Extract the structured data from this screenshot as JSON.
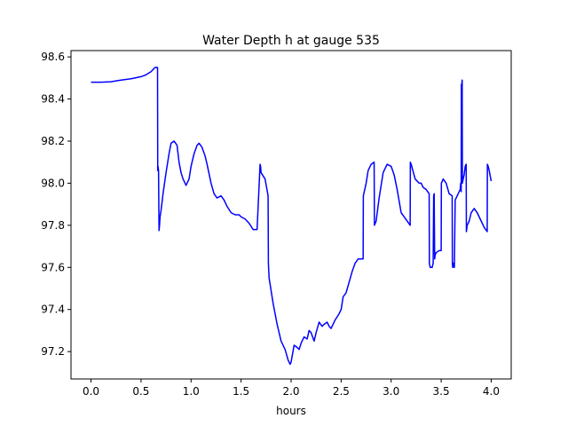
{
  "chart_data": {
    "type": "line",
    "title": "Water Depth h at gauge 535",
    "xlabel": "hours",
    "ylabel": "",
    "xlim": [
      -0.2,
      4.2
    ],
    "ylim": [
      97.07,
      98.63
    ],
    "x_ticks": [
      0.0,
      0.5,
      1.0,
      1.5,
      2.0,
      2.5,
      3.0,
      3.5,
      4.0
    ],
    "x_tick_labels": [
      "0.0",
      "0.5",
      "1.0",
      "1.5",
      "2.0",
      "2.5",
      "3.0",
      "3.5",
      "4.0"
    ],
    "y_ticks": [
      97.2,
      97.4,
      97.6,
      97.8,
      98.0,
      98.2,
      98.4,
      98.6
    ],
    "y_tick_labels": [
      "97.2",
      "97.4",
      "97.6",
      "97.8",
      "98.0",
      "98.2",
      "98.4",
      "98.6"
    ],
    "grid": false,
    "color": "#0000ff",
    "series": [
      {
        "name": "",
        "x": [
          0.0,
          0.1,
          0.2,
          0.3,
          0.4,
          0.5,
          0.55,
          0.6,
          0.64,
          0.665,
          0.667,
          0.67,
          0.675,
          0.68,
          0.685,
          0.69,
          0.7,
          0.72,
          0.75,
          0.78,
          0.8,
          0.83,
          0.86,
          0.88,
          0.9,
          0.92,
          0.95,
          0.98,
          1.0,
          1.03,
          1.06,
          1.08,
          1.11,
          1.14,
          1.16,
          1.2,
          1.23,
          1.26,
          1.3,
          1.33,
          1.36,
          1.4,
          1.44,
          1.48,
          1.5,
          1.54,
          1.58,
          1.62,
          1.66,
          1.69,
          1.695,
          1.7,
          1.74,
          1.77,
          1.773,
          1.78,
          1.82,
          1.86,
          1.9,
          1.94,
          1.97,
          1.99,
          2.0,
          2.03,
          2.06,
          2.08,
          2.1,
          2.13,
          2.16,
          2.18,
          2.2,
          2.23,
          2.25,
          2.28,
          2.31,
          2.33,
          2.36,
          2.38,
          2.4,
          2.42,
          2.44,
          2.48,
          2.5,
          2.52,
          2.55,
          2.58,
          2.61,
          2.64,
          2.67,
          2.7,
          2.72,
          2.722,
          2.75,
          2.77,
          2.8,
          2.83,
          2.833,
          2.85,
          2.88,
          2.92,
          2.96,
          3.0,
          3.03,
          3.06,
          3.1,
          3.13,
          3.16,
          3.19,
          3.192,
          3.2,
          3.24,
          3.28,
          3.3,
          3.32,
          3.35,
          3.38,
          3.382,
          3.39,
          3.41,
          3.42,
          3.425,
          3.43,
          3.435,
          3.44,
          3.45,
          3.48,
          3.5,
          3.502,
          3.52,
          3.55,
          3.58,
          3.61,
          3.612,
          3.615,
          3.62,
          3.63,
          3.632,
          3.64,
          3.67,
          3.69,
          3.695,
          3.7,
          3.702,
          3.705,
          3.708,
          3.71,
          3.712,
          3.72,
          3.73,
          3.74,
          3.75,
          3.752,
          3.76,
          3.78,
          3.8,
          3.83,
          3.86,
          3.88,
          3.9,
          3.93,
          3.96,
          3.962,
          3.97,
          3.98,
          4.0
        ],
        "y": [
          98.48,
          98.48,
          98.482,
          98.49,
          98.496,
          98.506,
          98.515,
          98.53,
          98.55,
          98.55,
          98.06,
          98.08,
          98.06,
          97.775,
          97.8,
          97.84,
          97.87,
          97.95,
          98.05,
          98.14,
          98.19,
          98.2,
          98.18,
          98.1,
          98.05,
          98.02,
          97.99,
          98.02,
          98.08,
          98.14,
          98.18,
          98.19,
          98.17,
          98.13,
          98.09,
          98.0,
          97.95,
          97.93,
          97.94,
          97.92,
          97.89,
          97.86,
          97.85,
          97.85,
          97.84,
          97.83,
          97.81,
          97.78,
          97.78,
          98.09,
          98.08,
          98.05,
          98.02,
          97.94,
          97.62,
          97.55,
          97.43,
          97.33,
          97.25,
          97.21,
          97.16,
          97.14,
          97.15,
          97.23,
          97.22,
          97.21,
          97.24,
          97.27,
          97.26,
          97.3,
          97.29,
          97.25,
          97.29,
          97.34,
          97.32,
          97.33,
          97.34,
          97.32,
          97.31,
          97.33,
          97.35,
          97.38,
          97.4,
          97.46,
          97.48,
          97.53,
          97.58,
          97.62,
          97.64,
          97.64,
          97.64,
          97.94,
          98.0,
          98.06,
          98.09,
          98.1,
          97.8,
          97.82,
          97.93,
          98.05,
          98.09,
          98.08,
          98.04,
          97.97,
          97.86,
          97.84,
          97.82,
          97.8,
          98.1,
          98.09,
          98.02,
          98.0,
          98.0,
          97.98,
          97.97,
          97.95,
          97.62,
          97.6,
          97.6,
          97.62,
          97.94,
          97.95,
          97.64,
          97.66,
          97.67,
          97.68,
          97.68,
          98.0,
          98.02,
          98.0,
          97.95,
          97.94,
          97.62,
          97.6,
          97.62,
          97.6,
          97.6,
          97.92,
          97.95,
          97.97,
          98.0,
          97.96,
          98.47,
          98.45,
          98.48,
          98.49,
          98.0,
          98.02,
          98.04,
          98.08,
          98.09,
          97.77,
          97.8,
          97.82,
          97.86,
          97.88,
          97.86,
          97.84,
          97.82,
          97.79,
          97.77,
          98.09,
          98.08,
          98.06,
          98.01
        ]
      }
    ]
  }
}
